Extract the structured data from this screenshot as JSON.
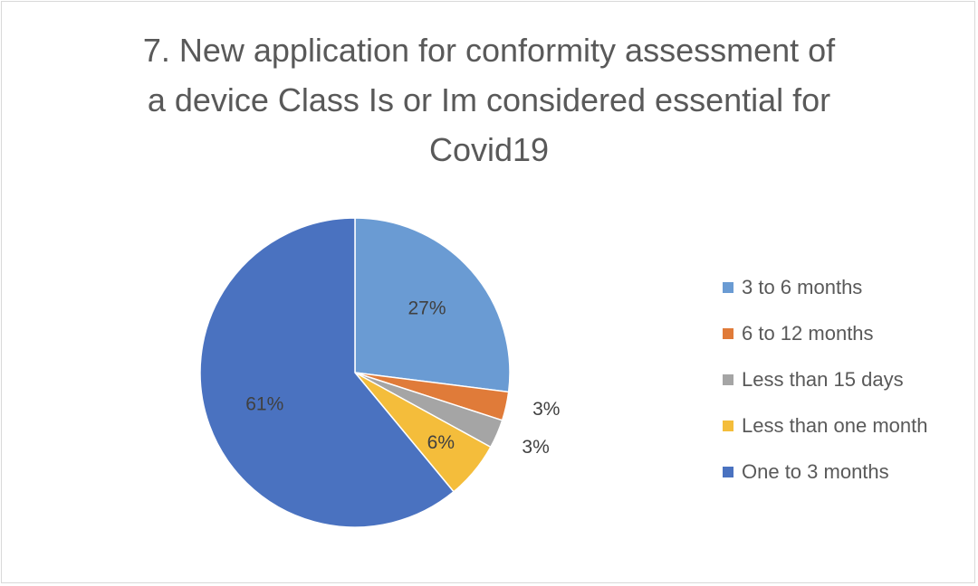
{
  "chart_data": {
    "type": "pie",
    "title": "7. New application for conformity assessment of a device Class Is or Im considered essential for Covid19",
    "title_lines": [
      "7. New application for conformity assessment of",
      "a device Class Is or Im considered essential for",
      "Covid19"
    ],
    "legend_position": "right",
    "slices": [
      {
        "label": "3 to 6 months",
        "value": 27,
        "display": "27%",
        "color": "#6a9bd3"
      },
      {
        "label": "6 to 12 months",
        "value": 3,
        "display": "3%",
        "color": "#e07b39"
      },
      {
        "label": "Less than 15 days",
        "value": 3,
        "display": "3%",
        "color": "#a5a5a5"
      },
      {
        "label": "Less than one month",
        "value": 6,
        "display": "6%",
        "color": "#f4bd3b"
      },
      {
        "label": "One to 3 months",
        "value": 61,
        "display": "61%",
        "color": "#4a72c0"
      }
    ]
  }
}
